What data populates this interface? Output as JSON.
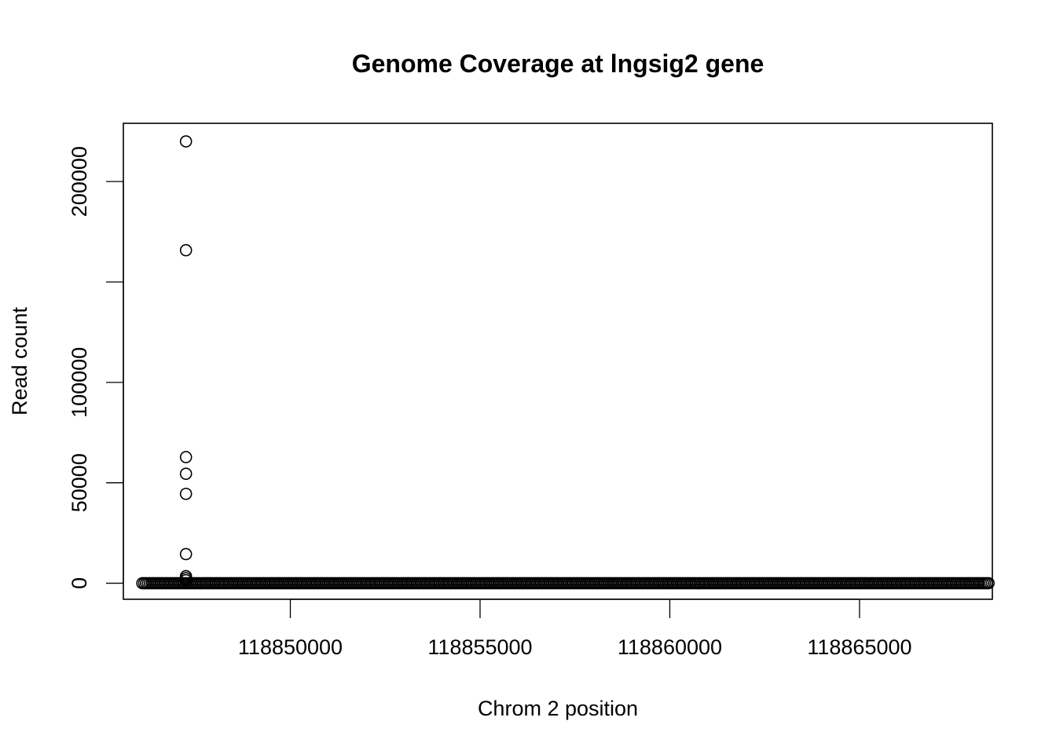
{
  "chart_data": {
    "type": "scatter",
    "title": "Genome Coverage at lngsig2 gene",
    "xlabel": "Chrom 2 position",
    "ylabel": "Read count",
    "xlim": [
      118845600,
      118868500
    ],
    "ylim": [
      -8000,
      229000
    ],
    "x_ticks": [
      {
        "value": 118850000,
        "label": "118850000"
      },
      {
        "value": 118855000,
        "label": "118855000"
      },
      {
        "value": 118860000,
        "label": "118860000"
      },
      {
        "value": 118865000,
        "label": "118865000"
      }
    ],
    "y_ticks": [
      {
        "value": 0,
        "label": "0"
      },
      {
        "value": 50000,
        "label": "50000"
      },
      {
        "value": 100000,
        "label": "100000"
      },
      {
        "value": 150000,
        "label": ""
      },
      {
        "value": 200000,
        "label": "200000"
      }
    ],
    "marker": "open-circle",
    "marker_color": "#000000",
    "grid": false,
    "legend": "none",
    "baseline_range": {
      "x_start": 118846100,
      "x_end": 118868400,
      "step": 50,
      "y": 0
    },
    "series": [
      {
        "values": [
          {
            "x": 118847250,
            "y": 220000
          },
          {
            "x": 118847250,
            "y": 165800
          },
          {
            "x": 118847250,
            "y": 62800
          },
          {
            "x": 118847250,
            "y": 54500
          },
          {
            "x": 118847250,
            "y": 44500
          },
          {
            "x": 118847250,
            "y": 14500
          },
          {
            "x": 118847250,
            "y": 3500
          },
          {
            "x": 118847250,
            "y": 2500
          },
          {
            "x": 118847250,
            "y": 1500
          }
        ]
      }
    ]
  }
}
